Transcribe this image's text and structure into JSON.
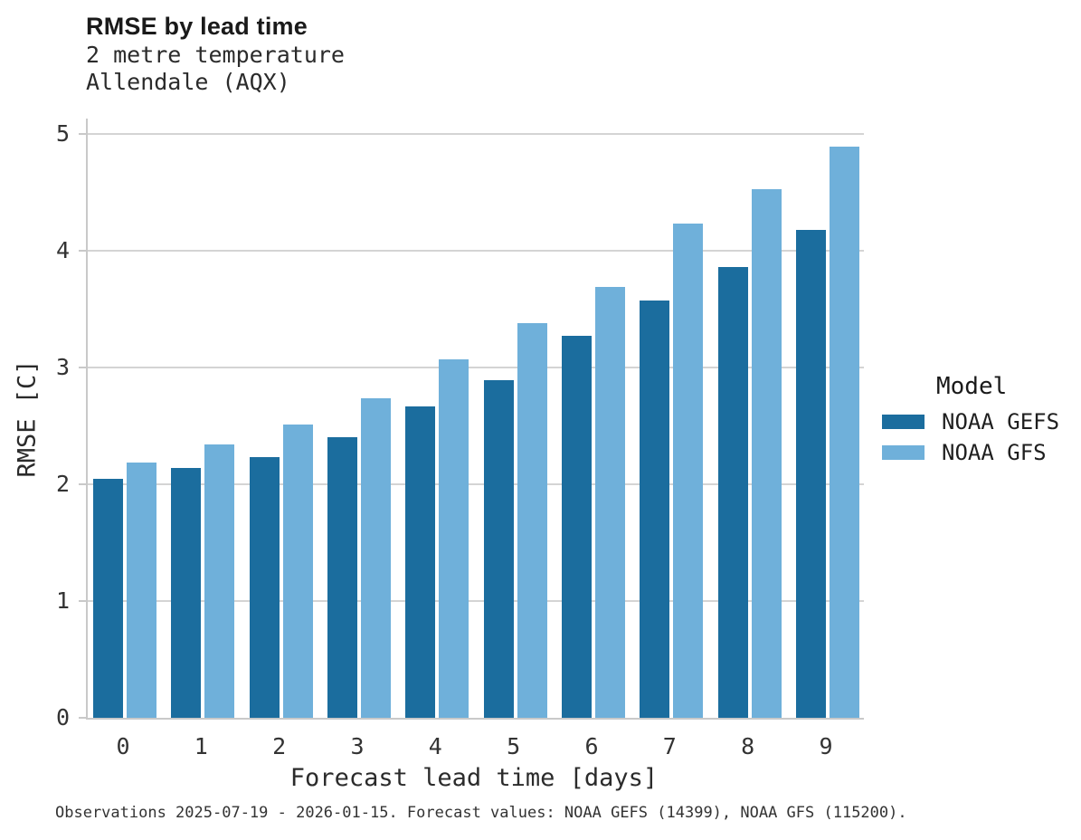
{
  "header": {
    "title": "RMSE by lead time",
    "subtitle_line1": "2 metre temperature",
    "subtitle_line2": "Allendale (AQX)"
  },
  "legend": {
    "title": "Model",
    "entries": [
      {
        "label": "NOAA GEFS",
        "color": "#1b6d9e"
      },
      {
        "label": "NOAA GFS",
        "color": "#6fb0da"
      }
    ]
  },
  "footer": {
    "text": "Observations 2025-07-19 - 2026-01-15. Forecast values: NOAA GEFS (14399), NOAA GFS (115200)."
  },
  "chart_data": {
    "type": "bar",
    "title": "RMSE by lead time",
    "subtitle": [
      "2 metre temperature",
      "Allendale (AQX)"
    ],
    "xlabel": "Forecast lead time [days]",
    "ylabel": "RMSE [C]",
    "categories": [
      "0",
      "1",
      "2",
      "3",
      "4",
      "5",
      "6",
      "7",
      "8",
      "9"
    ],
    "series": [
      {
        "name": "NOAA GEFS",
        "color": "#1b6d9e",
        "values": [
          2.05,
          2.14,
          2.23,
          2.4,
          2.67,
          2.89,
          3.27,
          3.57,
          3.86,
          4.18
        ]
      },
      {
        "name": "NOAA GFS",
        "color": "#6fb0da",
        "values": [
          2.19,
          2.34,
          2.51,
          2.74,
          3.07,
          3.38,
          3.69,
          4.23,
          4.53,
          4.89
        ]
      }
    ],
    "ylim": [
      0,
      5
    ],
    "yticks": [
      0,
      1,
      2,
      3,
      4,
      5
    ],
    "grid": true,
    "grid_color": "#d4d4d4",
    "legend_position": "right"
  }
}
